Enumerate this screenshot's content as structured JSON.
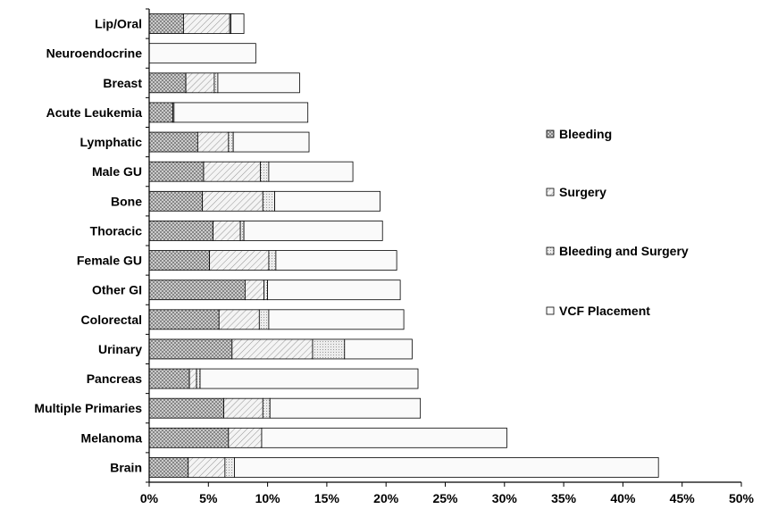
{
  "chart_data": {
    "type": "bar",
    "orientation": "horizontal",
    "stacked": true,
    "categories": [
      "Lip/Oral",
      "Neuroendocrine",
      "Breast",
      "Acute Leukemia",
      "Lymphatic",
      "Male GU",
      "Bone",
      "Thoracic",
      "Female GU",
      "Other GI",
      "Colorectal",
      "Urinary",
      "Pancreas",
      "Multiple Primaries",
      "Melanoma",
      "Brain"
    ],
    "series": [
      {
        "name": "Bleeding",
        "pattern": "crosshatch",
        "values": [
          2.9,
          0,
          3.1,
          2.0,
          4.1,
          4.6,
          4.5,
          5.4,
          5.1,
          8.1,
          5.9,
          7.0,
          3.4,
          6.3,
          6.7,
          3.3
        ]
      },
      {
        "name": "Surgery",
        "pattern": "diagonal",
        "values": [
          3.9,
          0,
          2.4,
          0,
          2.6,
          4.8,
          5.1,
          2.3,
          5.0,
          1.6,
          3.4,
          6.8,
          0.6,
          3.3,
          2.8,
          3.1
        ]
      },
      {
        "name": "Bleeding and Surgery",
        "pattern": "fine-dots",
        "values": [
          0.1,
          0,
          0.3,
          0.1,
          0.4,
          0.7,
          1.0,
          0.3,
          0.6,
          0.3,
          0.8,
          2.7,
          0.3,
          0.6,
          0,
          0.8
        ]
      },
      {
        "name": "VCF Placement",
        "pattern": "plain",
        "values": [
          1.1,
          9.0,
          6.9,
          11.3,
          6.4,
          7.1,
          8.9,
          11.7,
          10.2,
          11.2,
          11.4,
          5.7,
          18.4,
          12.7,
          20.7,
          35.8
        ]
      }
    ],
    "x_ticks": [
      "0%",
      "5%",
      "10%",
      "15%",
      "20%",
      "25%",
      "30%",
      "35%",
      "40%",
      "45%",
      "50%"
    ],
    "xlim": [
      0,
      50
    ],
    "grid": false,
    "legend_position": "right"
  }
}
